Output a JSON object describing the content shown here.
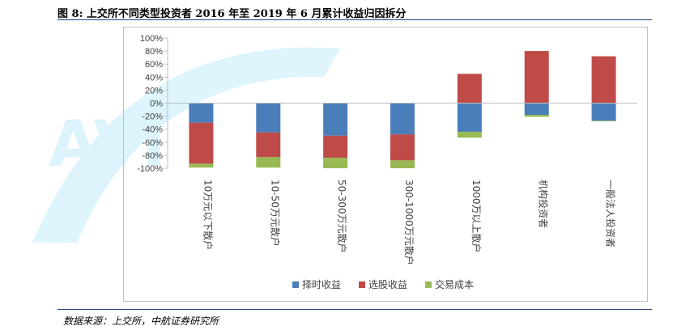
{
  "figure": {
    "title": "图 8: 上交所不同类型投资者 2016 年至 2019 年 6 月累计收益归因拆分",
    "source": "数据来源：上交所，中航证券研究所"
  },
  "colors": {
    "timing": "#4a7ebb",
    "selection": "#be4b48",
    "cost": "#98b954",
    "axis": "#bfbfbf",
    "watermark": "#00aeef"
  },
  "chart_data": {
    "type": "bar",
    "stacked": true,
    "categories": [
      "10万元以下散户",
      "10-50万元散户",
      "50-300万元散户",
      "300-1000万元散户",
      "1000万以上散户",
      "机构投资者",
      "一般法人投资者"
    ],
    "series": [
      {
        "name": "择时收益",
        "values": [
          -30,
          -45,
          -50,
          -48,
          -44,
          -18,
          -27
        ]
      },
      {
        "name": "选股收益",
        "values": [
          -63,
          -38,
          -34,
          -40,
          45,
          80,
          72
        ]
      },
      {
        "name": "交易成本",
        "values": [
          -6,
          -16,
          -16,
          -12,
          -9,
          -3,
          -1
        ]
      }
    ],
    "ylim": [
      -100,
      100
    ],
    "yticks": [
      "-100%",
      "-80%",
      "-60%",
      "-40%",
      "-20%",
      "0%",
      "20%",
      "40%",
      "60%",
      "80%",
      "100%"
    ],
    "legend": "bottom",
    "grid": false
  }
}
